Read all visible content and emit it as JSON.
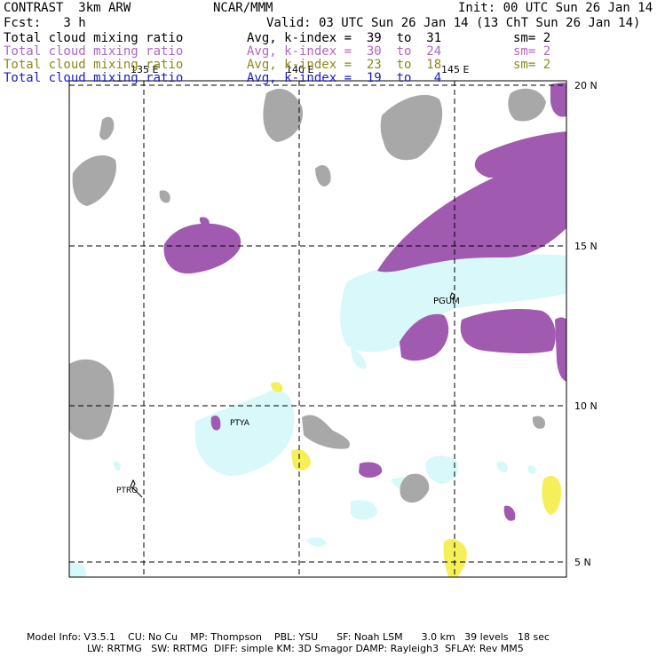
{
  "header": {
    "title_left": "CONTRAST  3km ARW",
    "title_mid": "NCAR/MMM",
    "init": "Init: 00 UTC Sun 26 Jan 14",
    "fcst": "Fcst:   3 h",
    "valid": "Valid: 03 UTC Sun 26 Jan 14 (13 ChT Sun 26 Jan 14)"
  },
  "fields": [
    {
      "name": "Total cloud mixing ratio",
      "avg": "Avg, k-index =  39  to  31",
      "sm": "sm= 2",
      "color": "#000000"
    },
    {
      "name": "Total cloud mixing ratio",
      "avg": "Avg, k-index =  30  to  24",
      "sm": "sm= 2",
      "color": "#b066c0"
    },
    {
      "name": "Total cloud mixing ratio",
      "avg": "Avg, k-index =  23  to  18",
      "sm": "sm= 2",
      "color": "#8a8a1a"
    },
    {
      "name": "Total cloud mixing ratio",
      "avg": "Avg, k-index =  19  to   4",
      "sm": "",
      "color": "#1a1ad0"
    }
  ],
  "map": {
    "lon_labels": [
      "135 E",
      "140 E",
      "145 E"
    ],
    "lat_labels": [
      "20 N",
      "15 N",
      "10 N",
      "5 N"
    ],
    "stations": [
      "PGUM",
      "PTYA",
      "PTRO"
    ],
    "colors": {
      "gray_layer": "#a8a8a8",
      "purple_layer": "#a05ab0",
      "yellow_layer": "#f5f05a",
      "cyan_layer": "#d8f8fa",
      "gridline": "#000000"
    }
  },
  "footer": {
    "line1": "Model Info: V3.5.1    CU: No Cu    MP: Thompson    PBL: YSU      SF: Noah LSM      3.0 km   39 levels   18 sec",
    "line2": "LW: RRTMG   SW: RRTMG  DIFF: simple KM: 3D Smagor DAMP: Rayleigh3  SFLAY: Rev MM5"
  }
}
